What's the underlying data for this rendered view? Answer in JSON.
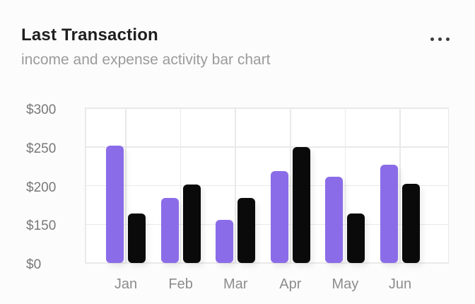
{
  "card": {
    "title": "Last Transaction",
    "subtitle": "income and expense activity bar chart"
  },
  "icons": {
    "more_options": "ellipsis-horizontal"
  },
  "colors": {
    "income_bar": "#8b6ce8",
    "expense_bar": "#0a0a0a",
    "gridline": "#e9e9ea",
    "title_text": "#1f1f1f",
    "subtitle_text": "#9b9b9b",
    "axis_text": "#8c8c8c",
    "card_background": "#fcfcfc"
  },
  "chart_data": {
    "type": "bar",
    "title": "Last Transaction",
    "subtitle": "income and expense activity bar chart",
    "categories": [
      "Jan",
      "Feb",
      "Mar",
      "Apr",
      "May",
      "Jun"
    ],
    "series": [
      {
        "name": "income",
        "color": "#8b6ce8",
        "values": [
          252,
          184,
          156,
          219,
          211,
          227
        ]
      },
      {
        "name": "expense",
        "color": "#0a0a0a",
        "values": [
          164,
          201,
          184,
          250,
          164,
          202
        ]
      }
    ],
    "y_ticks": [
      0,
      150,
      200,
      250,
      300
    ],
    "y_tick_labels": [
      "$0",
      "$150",
      "$200",
      "$250",
      "$300"
    ],
    "ylim": [
      0,
      300
    ],
    "y_axis_note": "tick values are evenly spaced on screen (non-linear scale)",
    "grid": true,
    "legend": false
  }
}
